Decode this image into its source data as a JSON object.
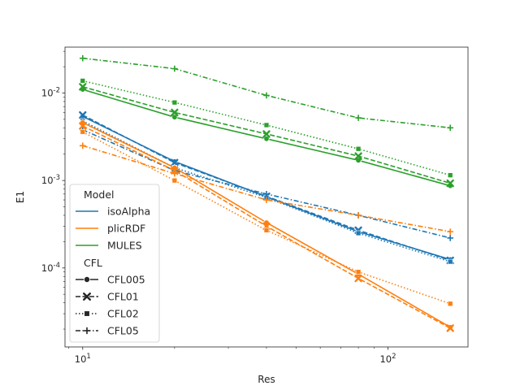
{
  "chart_data": {
    "type": "line",
    "title": "",
    "xlabel": "Res",
    "ylabel": "E1",
    "xscale": "log",
    "yscale": "log",
    "xlim": [
      8.75,
      182.9
    ],
    "ylim": [
      1.25e-05,
      0.0335
    ],
    "grid": false,
    "legend_position": "lower-left",
    "x_tick_labels": [
      {
        "base": "10",
        "exp": "1",
        "value": 10
      },
      {
        "base": "10",
        "exp": "2",
        "value": 100
      }
    ],
    "y_tick_labels": [
      {
        "base": "10",
        "exp": "-4",
        "value": 0.0001
      },
      {
        "base": "10",
        "exp": "-3",
        "value": 0.001
      },
      {
        "base": "10",
        "exp": "-2",
        "value": 0.01
      }
    ],
    "x": [
      10,
      20,
      40,
      80,
      160
    ],
    "models": [
      {
        "name": "isoAlpha",
        "color": "#1f77b4"
      },
      {
        "name": "plicRDF",
        "color": "#ff7f0e"
      },
      {
        "name": "MULES",
        "color": "#2ca02c"
      }
    ],
    "cfls": [
      {
        "name": "CFL005",
        "marker": "circle",
        "dash": ""
      },
      {
        "name": "CFL01",
        "marker": "x",
        "dash": "6,2.5"
      },
      {
        "name": "CFL02",
        "marker": "square",
        "dash": "1.5,2.5"
      },
      {
        "name": "CFL05",
        "marker": "plus",
        "dash": "6,2.5,1.5,2.5"
      }
    ],
    "legend": {
      "hue_title": "Model",
      "style_title": "CFL"
    },
    "series": [
      {
        "name": "isoAlpha CFL005",
        "model": 0,
        "cfl": 0,
        "values": [
          0.0054,
          0.00165,
          0.00065,
          0.00026,
          0.000125
        ]
      },
      {
        "name": "isoAlpha CFL01",
        "model": 0,
        "cfl": 1,
        "values": [
          0.0056,
          0.0016,
          0.00066,
          0.00027,
          0.000122
        ]
      },
      {
        "name": "isoAlpha CFL02",
        "model": 0,
        "cfl": 2,
        "values": [
          0.0048,
          0.0014,
          0.00064,
          0.00025,
          0.000118
        ]
      },
      {
        "name": "isoAlpha CFL05",
        "model": 0,
        "cfl": 3,
        "values": [
          0.0038,
          0.0013,
          0.0007,
          0.0004,
          0.00022
        ]
      },
      {
        "name": "plicRDF CFL005",
        "model": 1,
        "cfl": 0,
        "values": [
          0.0046,
          0.0014,
          0.00033,
          8.5e-05,
          2.1e-05
        ]
      },
      {
        "name": "plicRDF CFL01",
        "model": 1,
        "cfl": 1,
        "values": [
          0.0042,
          0.0013,
          0.0003,
          7.6e-05,
          2.05e-05
        ]
      },
      {
        "name": "plicRDF CFL02",
        "model": 1,
        "cfl": 2,
        "values": [
          0.0036,
          0.001,
          0.00027,
          9e-05,
          3.9e-05
        ]
      },
      {
        "name": "plicRDF CFL05",
        "model": 1,
        "cfl": 3,
        "values": [
          0.0025,
          0.0012,
          0.0006,
          0.0004,
          0.00026
        ]
      },
      {
        "name": "MULES CFL005",
        "model": 2,
        "cfl": 0,
        "values": [
          0.011,
          0.0053,
          0.003,
          0.0017,
          0.00087
        ]
      },
      {
        "name": "MULES CFL01",
        "model": 2,
        "cfl": 1,
        "values": [
          0.0118,
          0.006,
          0.0034,
          0.0019,
          0.00093
        ]
      },
      {
        "name": "MULES CFL02",
        "model": 2,
        "cfl": 2,
        "values": [
          0.0138,
          0.0078,
          0.0043,
          0.0023,
          0.00115
        ]
      },
      {
        "name": "MULES CFL05",
        "model": 2,
        "cfl": 3,
        "values": [
          0.025,
          0.019,
          0.0094,
          0.0052,
          0.004
        ]
      }
    ]
  }
}
